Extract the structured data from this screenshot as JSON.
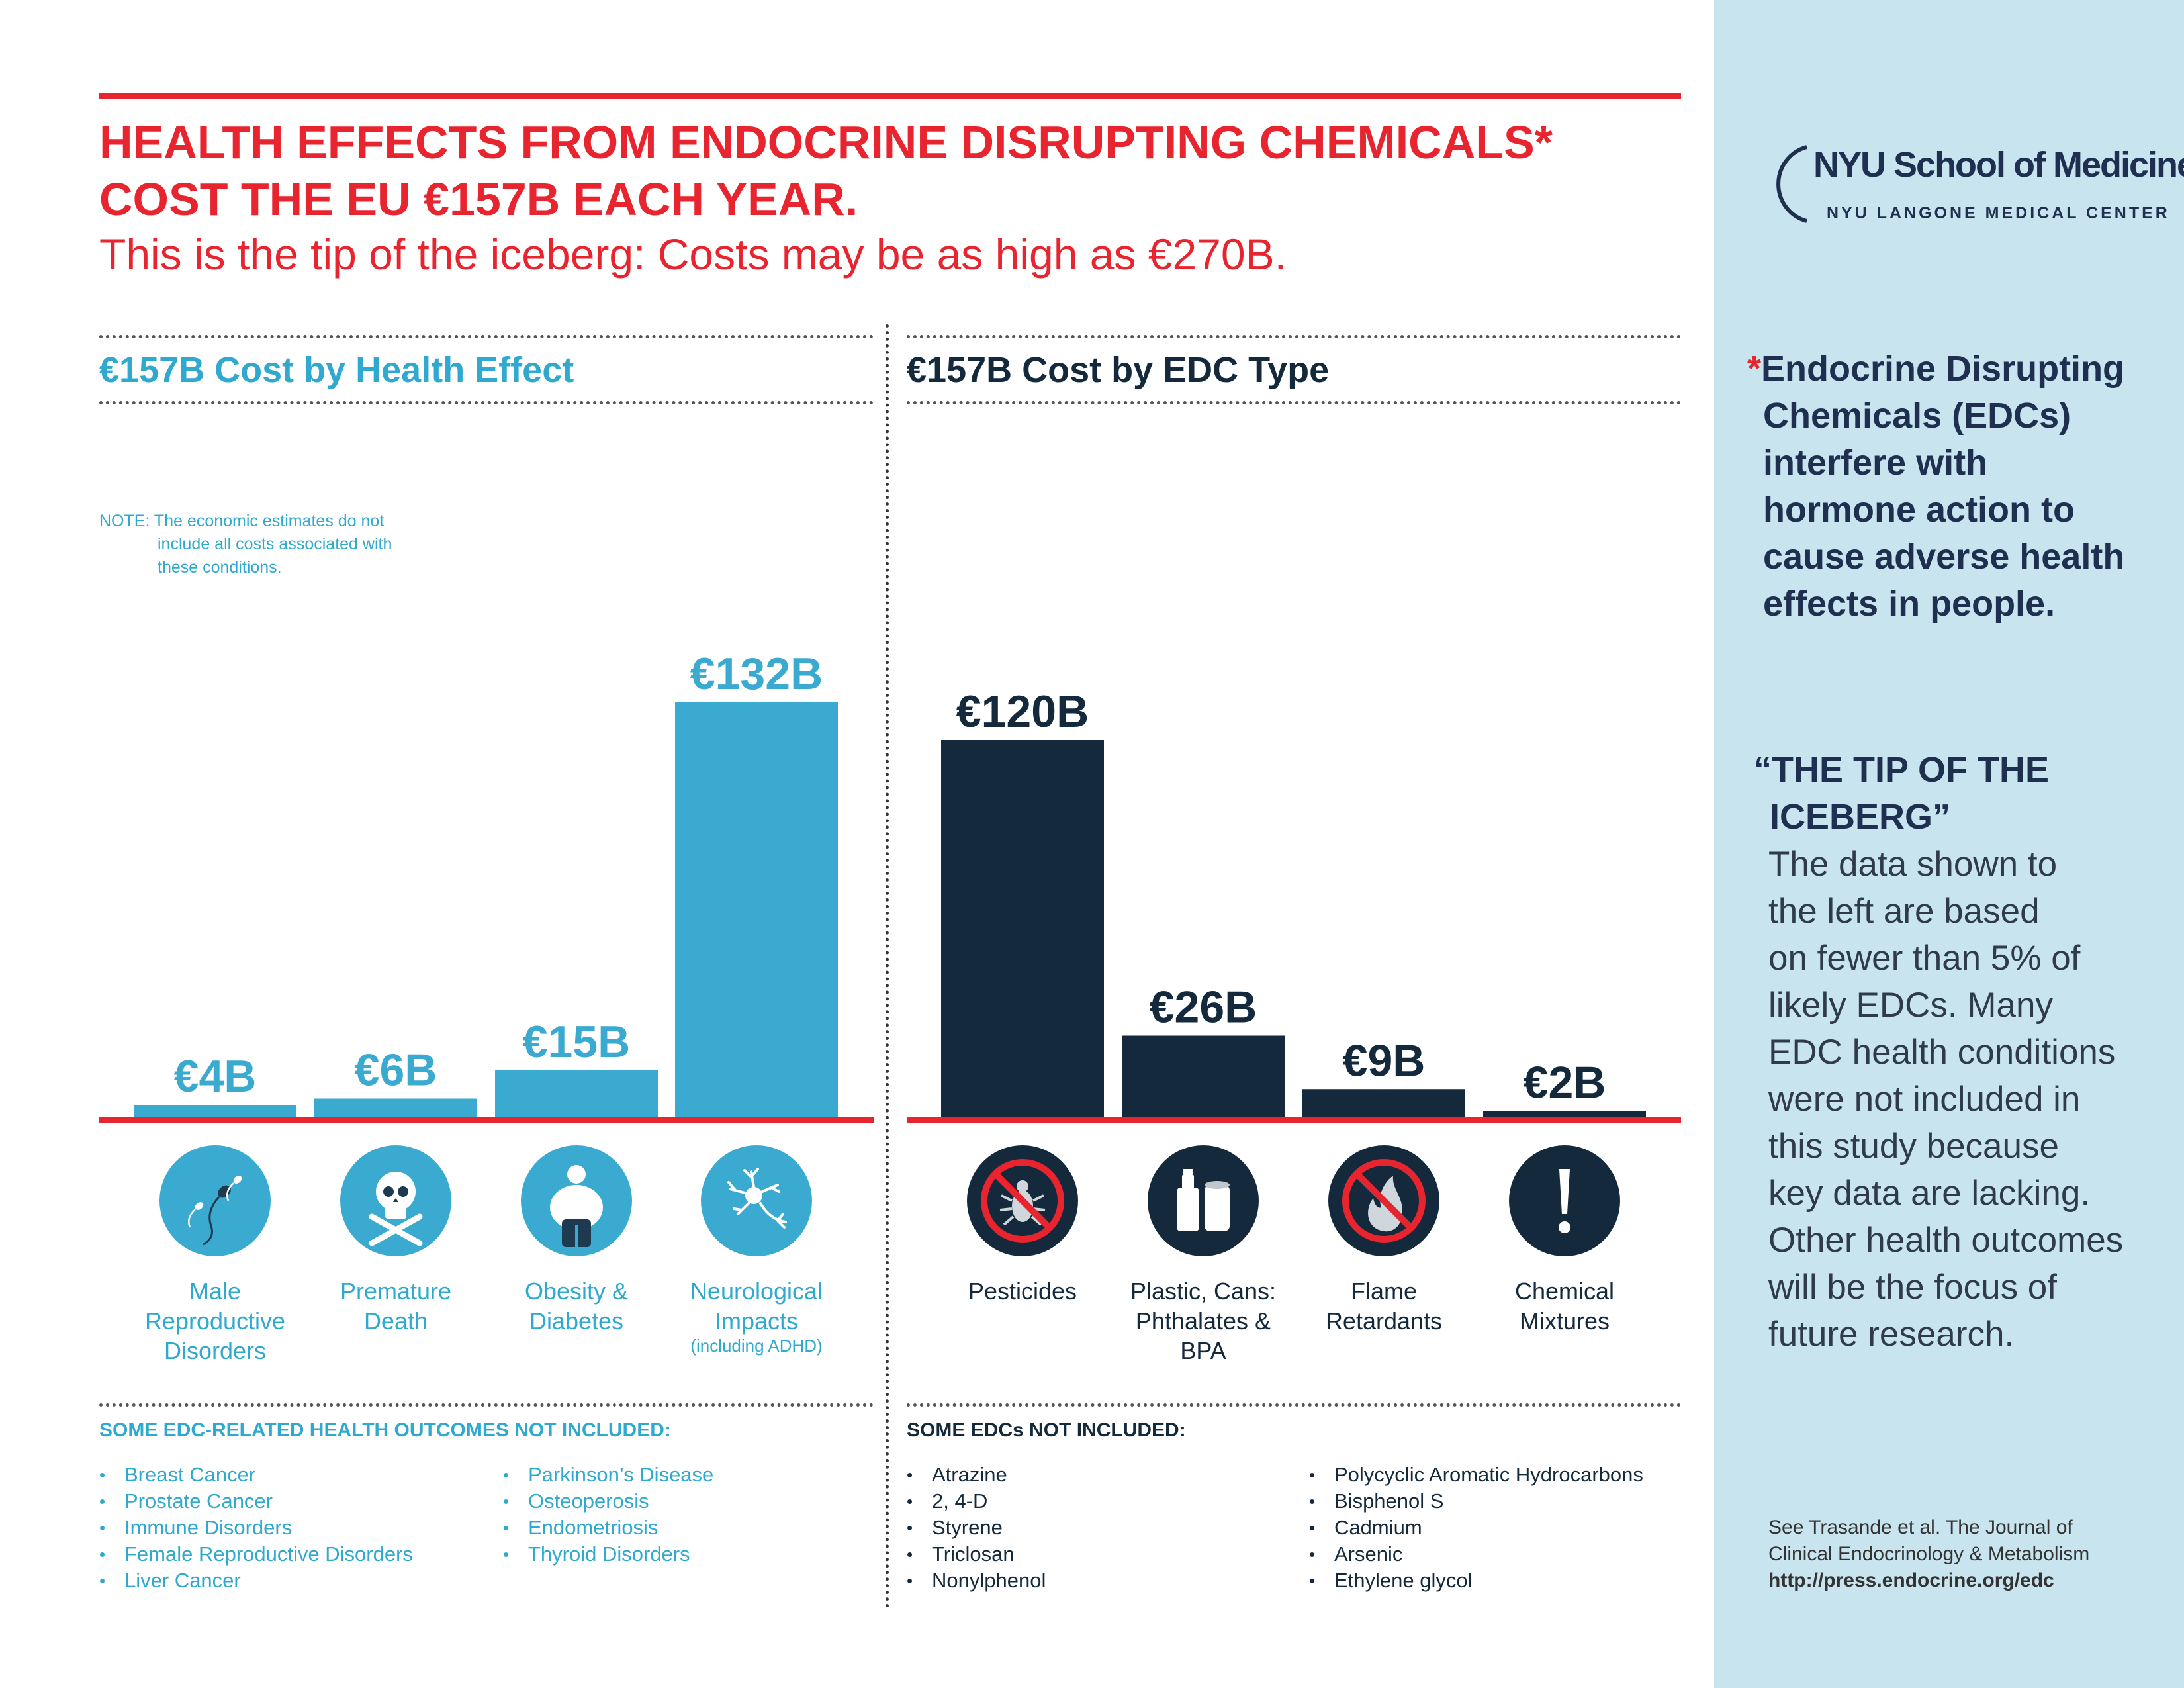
{
  "header": {
    "headline_line1": "HEALTH EFFECTS FROM ENDOCRINE DISRUPTING CHEMICALS*",
    "headline_line2": "COST THE EU €157B EACH YEAR.",
    "subheadline": "This is the tip of the iceberg: Costs may be as high as €270B."
  },
  "logo": {
    "name": "NYU School of Medicine",
    "subtitle": "NYU LANGONE MEDICAL CENTER"
  },
  "colors": {
    "red": "#e8242f",
    "health_bar": "#3aaad0",
    "edc_bar": "#142a3c",
    "sidebar": "#c8e4ee"
  },
  "note": {
    "line1": "NOTE: The economic estimates do not",
    "line2": "include all costs associated with",
    "line3": "these conditions."
  },
  "chart_data": [
    {
      "type": "bar",
      "title": "€157B Cost by Health Effect",
      "categories": [
        "Male Reproductive Disorders",
        "Premature Death",
        "Obesity & Diabetes",
        "Neurological Impacts"
      ],
      "category_labels": [
        {
          "lines": [
            "Male",
            "Reproductive",
            "Disorders"
          ],
          "sub": ""
        },
        {
          "lines": [
            "Premature",
            "Death"
          ],
          "sub": ""
        },
        {
          "lines": [
            "Obesity &",
            "Diabetes"
          ],
          "sub": ""
        },
        {
          "lines": [
            "Neurological",
            "Impacts"
          ],
          "sub": "(including ADHD)"
        }
      ],
      "values": [
        4,
        6,
        15,
        132
      ],
      "value_labels": [
        "€4B",
        "€6B",
        "€15B",
        "€132B"
      ],
      "icons": [
        "sperm-icon",
        "skull-crossbones-icon",
        "obese-person-icon",
        "neuron-icon"
      ],
      "unit": "€ billion",
      "color": "#3aaad0"
    },
    {
      "type": "bar",
      "title": "€157B Cost by EDC Type",
      "categories": [
        "Pesticides",
        "Plastic, Cans: Phthalates & BPA",
        "Flame Retardants",
        "Chemical Mixtures"
      ],
      "category_labels": [
        {
          "lines": [
            "Pesticides"
          ],
          "sub": ""
        },
        {
          "lines": [
            "Plastic, Cans:",
            "Phthalates &",
            "BPA"
          ],
          "sub": ""
        },
        {
          "lines": [
            "Flame",
            "Retardants"
          ],
          "sub": ""
        },
        {
          "lines": [
            "Chemical",
            "Mixtures"
          ],
          "sub": ""
        }
      ],
      "values": [
        120,
        26,
        9,
        2
      ],
      "value_labels": [
        "€120B",
        "€26B",
        "€9B",
        "€2B"
      ],
      "icons": [
        "no-bug-icon",
        "bottle-can-icon",
        "no-fire-icon",
        "exclamation-icon"
      ],
      "unit": "€ billion",
      "color": "#142a3c"
    }
  ],
  "health_not_included": {
    "title": "SOME EDC-RELATED HEALTH OUTCOMES NOT INCLUDED:",
    "col1": [
      "Breast Cancer",
      "Prostate Cancer",
      "Immune Disorders",
      "Female Reproductive Disorders",
      "Liver Cancer"
    ],
    "col2": [
      "Parkinson’s Disease",
      "Osteoperosis",
      "Endometriosis",
      "Thyroid Disorders"
    ]
  },
  "edc_not_included": {
    "title": "SOME EDCs NOT INCLUDED:",
    "col1": [
      "Atrazine",
      "2, 4-D",
      "Styrene",
      "Triclosan",
      "Nonylphenol"
    ],
    "col2": [
      "Polycyclic Aromatic Hydrocarbons",
      "Bisphenol S",
      "Cadmium",
      "Arsenic",
      "Ethylene glycol"
    ]
  },
  "sidebar": {
    "definition_star": "*",
    "definition_lines": [
      "Endocrine Disrupting",
      "Chemicals (EDCs)",
      "interfere with",
      "hormone action to",
      "cause adverse health",
      "effects in people."
    ],
    "tip_title_line1": "“THE TIP OF THE",
    "tip_title_line2": "ICEBERG”",
    "tip_body_lines": [
      "The data shown to",
      "the left are based",
      "on fewer than 5% of",
      "likely EDCs. Many",
      "EDC health conditions",
      "were not included in",
      "this study because",
      "key data are lacking.",
      "Other health outcomes",
      "will be the focus of",
      "future research."
    ],
    "reference_line1": "See Trasande et al. The Journal of",
    "reference_line2": "Clinical Endocrinology & Metabolism",
    "reference_url": "http://press.endocrine.org/edc"
  }
}
